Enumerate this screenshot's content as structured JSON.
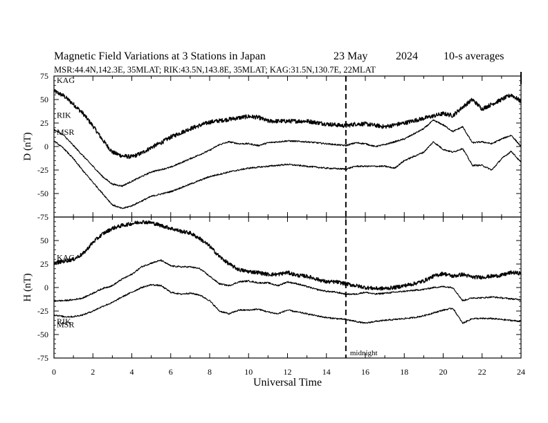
{
  "header": {
    "title_main": "Magnetic Field Variations at 3 Stations in Japan",
    "title_date": "23 May",
    "title_year": "2024",
    "title_avg": "10-s averages",
    "subtitle": "MSR:44.4N,142.3E, 35MLAT;  RIK:43.5N,143.8E, 35MLAT;  KAG:31.5N,130.7E, 22MLAT"
  },
  "chart_data": [
    {
      "type": "line",
      "panel": "top",
      "ylabel": "D (nT)",
      "ylim": [
        -75,
        75
      ],
      "yticks": [
        "75",
        "50",
        "25",
        "0",
        "-25",
        "-50",
        "-75"
      ],
      "xlim": [
        0,
        24
      ],
      "annotation": "",
      "series": [
        {
          "name": "KAG",
          "noise": 2.2,
          "points": [
            [
              0,
              59
            ],
            [
              0.5,
              54
            ],
            [
              1,
              45
            ],
            [
              1.5,
              35
            ],
            [
              2,
              22
            ],
            [
              2.5,
              7
            ],
            [
              3,
              -6
            ],
            [
              3.5,
              -10
            ],
            [
              4,
              -11
            ],
            [
              4.5,
              -7
            ],
            [
              5,
              -1
            ],
            [
              5.5,
              4
            ],
            [
              6,
              10
            ],
            [
              7,
              19
            ],
            [
              8,
              26
            ],
            [
              9,
              29
            ],
            [
              10,
              32
            ],
            [
              10.5,
              31
            ],
            [
              11,
              27
            ],
            [
              12,
              27
            ],
            [
              13,
              27
            ],
            [
              14,
              24
            ],
            [
              15,
              22
            ],
            [
              15.5,
              24
            ],
            [
              16,
              24
            ],
            [
              17,
              21
            ],
            [
              18,
              25
            ],
            [
              19,
              30
            ],
            [
              20,
              35
            ],
            [
              20.5,
              33
            ],
            [
              21,
              42
            ],
            [
              21.5,
              50
            ],
            [
              22,
              40
            ],
            [
              22.5,
              45
            ],
            [
              23,
              50
            ],
            [
              23.5,
              55
            ],
            [
              24,
              48
            ]
          ]
        },
        {
          "name": "RIK",
          "noise": 0.8,
          "points": [
            [
              0,
              18
            ],
            [
              0.5,
              12
            ],
            [
              1,
              1
            ],
            [
              1.5,
              -10
            ],
            [
              2,
              -21
            ],
            [
              2.5,
              -32
            ],
            [
              3,
              -40
            ],
            [
              3.5,
              -42
            ],
            [
              4,
              -37
            ],
            [
              4.5,
              -32
            ],
            [
              5,
              -27
            ],
            [
              6,
              -22
            ],
            [
              7,
              -13
            ],
            [
              8,
              -4
            ],
            [
              8.5,
              2
            ],
            [
              9,
              5
            ],
            [
              9.5,
              3
            ],
            [
              10,
              3
            ],
            [
              10.5,
              1
            ],
            [
              11,
              4
            ],
            [
              12,
              6
            ],
            [
              13,
              5
            ],
            [
              14,
              3
            ],
            [
              15,
              1
            ],
            [
              15.5,
              4
            ],
            [
              16,
              3
            ],
            [
              16.5,
              0
            ],
            [
              17,
              2
            ],
            [
              18,
              8
            ],
            [
              19,
              19
            ],
            [
              19.5,
              28
            ],
            [
              20,
              23
            ],
            [
              20.5,
              16
            ],
            [
              21,
              21
            ],
            [
              21.5,
              4
            ],
            [
              22,
              5
            ],
            [
              22.5,
              3
            ],
            [
              23,
              8
            ],
            [
              23.5,
              12
            ],
            [
              24,
              0
            ]
          ]
        },
        {
          "name": "MSR",
          "noise": 0.8,
          "points": [
            [
              0,
              6
            ],
            [
              0.5,
              -2
            ],
            [
              1,
              -13
            ],
            [
              1.5,
              -26
            ],
            [
              2,
              -38
            ],
            [
              2.5,
              -50
            ],
            [
              3,
              -62
            ],
            [
              3.5,
              -66
            ],
            [
              4,
              -63
            ],
            [
              4.5,
              -58
            ],
            [
              5,
              -53
            ],
            [
              6,
              -48
            ],
            [
              7,
              -40
            ],
            [
              8,
              -32
            ],
            [
              9,
              -27
            ],
            [
              10,
              -23
            ],
            [
              11,
              -21
            ],
            [
              12,
              -19
            ],
            [
              13,
              -21
            ],
            [
              14,
              -23
            ],
            [
              15,
              -24
            ],
            [
              15.5,
              -21
            ],
            [
              16,
              -21
            ],
            [
              17,
              -21
            ],
            [
              17.5,
              -23
            ],
            [
              18,
              -15
            ],
            [
              19,
              -6
            ],
            [
              19.5,
              5
            ],
            [
              20,
              -3
            ],
            [
              20.5,
              -6
            ],
            [
              21,
              -2
            ],
            [
              21.5,
              -20
            ],
            [
              22,
              -20
            ],
            [
              22.5,
              -25
            ],
            [
              23,
              -13
            ],
            [
              23.5,
              -5
            ],
            [
              24,
              -17
            ]
          ]
        }
      ]
    },
    {
      "type": "line",
      "panel": "bottom",
      "ylabel": "H (nT)",
      "ylim": [
        -75,
        75
      ],
      "yticks": [
        "",
        "50",
        "25",
        "0",
        "-25",
        "-50",
        "-75"
      ],
      "xlim": [
        0,
        24
      ],
      "xlabel": "Universal Time",
      "xticks": [
        "0",
        "2",
        "4",
        "6",
        "8",
        "10",
        "12",
        "14",
        "16",
        "18",
        "20",
        "22",
        "24"
      ],
      "annotation": "midnight",
      "series": [
        {
          "name": "KAG",
          "noise": 2.0,
          "points": [
            [
              0,
              26
            ],
            [
              0.5,
              28
            ],
            [
              1,
              30
            ],
            [
              1.5,
              36
            ],
            [
              2,
              48
            ],
            [
              2.5,
              57
            ],
            [
              3,
              63
            ],
            [
              3.5,
              66
            ],
            [
              4,
              68
            ],
            [
              4.5,
              70
            ],
            [
              5,
              69
            ],
            [
              5.5,
              66
            ],
            [
              6,
              63
            ],
            [
              6.5,
              60
            ],
            [
              7,
              58
            ],
            [
              7.5,
              52
            ],
            [
              8,
              44
            ],
            [
              8.5,
              33
            ],
            [
              9,
              25
            ],
            [
              9.5,
              19
            ],
            [
              10,
              17
            ],
            [
              10.5,
              16
            ],
            [
              11,
              14
            ],
            [
              11.5,
              14
            ],
            [
              12,
              16
            ],
            [
              12.5,
              13
            ],
            [
              13,
              12
            ],
            [
              13.5,
              9
            ],
            [
              14,
              6
            ],
            [
              14.5,
              6
            ],
            [
              15,
              4
            ],
            [
              15.5,
              2
            ],
            [
              16,
              0
            ],
            [
              16.5,
              -1
            ],
            [
              17,
              -1
            ],
            [
              17.5,
              0
            ],
            [
              18,
              2
            ],
            [
              18.5,
              4
            ],
            [
              19,
              7
            ],
            [
              19.5,
              12
            ],
            [
              20,
              15
            ],
            [
              20.5,
              12
            ],
            [
              21,
              14
            ],
            [
              21.5,
              11
            ],
            [
              22,
              11
            ],
            [
              22.5,
              12
            ],
            [
              23,
              13
            ],
            [
              23.5,
              16
            ],
            [
              24,
              15
            ]
          ]
        },
        {
          "name": "RIK",
          "noise": 0.8,
          "points": [
            [
              0,
              -14
            ],
            [
              0.5,
              -14
            ],
            [
              1,
              -13
            ],
            [
              1.5,
              -11
            ],
            [
              2,
              -6
            ],
            [
              2.5,
              -1
            ],
            [
              3,
              2
            ],
            [
              3.5,
              9
            ],
            [
              4,
              14
            ],
            [
              4.5,
              22
            ],
            [
              5,
              26
            ],
            [
              5.5,
              29
            ],
            [
              6,
              23
            ],
            [
              6.5,
              22
            ],
            [
              7,
              22
            ],
            [
              7.5,
              20
            ],
            [
              8,
              12
            ],
            [
              8.5,
              4
            ],
            [
              9,
              2
            ],
            [
              9.5,
              6
            ],
            [
              10,
              7
            ],
            [
              10.5,
              5
            ],
            [
              11,
              5
            ],
            [
              11.5,
              2
            ],
            [
              12,
              6
            ],
            [
              12.5,
              4
            ],
            [
              13,
              1
            ],
            [
              13.5,
              -2
            ],
            [
              14,
              -4
            ],
            [
              14.5,
              -5
            ],
            [
              15,
              -7
            ],
            [
              15.5,
              -7
            ],
            [
              16,
              -5
            ],
            [
              16.5,
              -7
            ],
            [
              17,
              -6
            ],
            [
              17.5,
              -5
            ],
            [
              18,
              -4
            ],
            [
              18.5,
              -3
            ],
            [
              19,
              -2
            ],
            [
              19.5,
              0
            ],
            [
              20,
              1
            ],
            [
              20.5,
              0
            ],
            [
              21,
              -14
            ],
            [
              21.5,
              -11
            ],
            [
              22,
              -11
            ],
            [
              22.5,
              -10
            ],
            [
              23,
              -11
            ],
            [
              23.5,
              -12
            ],
            [
              24,
              -13
            ]
          ]
        },
        {
          "name": "MSR",
          "noise": 0.8,
          "points": [
            [
              0,
              -29
            ],
            [
              0.5,
              -31
            ],
            [
              1,
              -31
            ],
            [
              1.5,
              -29
            ],
            [
              2,
              -25
            ],
            [
              2.5,
              -20
            ],
            [
              3,
              -16
            ],
            [
              3.5,
              -10
            ],
            [
              4,
              -5
            ],
            [
              4.5,
              0
            ],
            [
              5,
              3
            ],
            [
              5.5,
              2
            ],
            [
              6,
              -5
            ],
            [
              6.5,
              -7
            ],
            [
              7,
              -6
            ],
            [
              7.5,
              -8
            ],
            [
              8,
              -14
            ],
            [
              8.5,
              -25
            ],
            [
              9,
              -28
            ],
            [
              9.5,
              -24
            ],
            [
              10,
              -24
            ],
            [
              10.5,
              -23
            ],
            [
              11,
              -26
            ],
            [
              11.5,
              -28
            ],
            [
              12,
              -24
            ],
            [
              12.5,
              -26
            ],
            [
              13,
              -28
            ],
            [
              13.5,
              -30
            ],
            [
              14,
              -32
            ],
            [
              14.5,
              -33
            ],
            [
              15,
              -34
            ],
            [
              15.5,
              -36
            ],
            [
              16,
              -38
            ],
            [
              16.5,
              -36
            ],
            [
              17,
              -35
            ],
            [
              17.5,
              -34
            ],
            [
              18,
              -33
            ],
            [
              18.5,
              -32
            ],
            [
              19,
              -30
            ],
            [
              19.5,
              -27
            ],
            [
              20,
              -24
            ],
            [
              20.5,
              -22
            ],
            [
              21,
              -38
            ],
            [
              21.5,
              -33
            ],
            [
              22,
              -33
            ],
            [
              22.5,
              -33
            ],
            [
              23,
              -34
            ],
            [
              23.5,
              -35
            ],
            [
              24,
              -36
            ]
          ]
        }
      ]
    }
  ],
  "midnight_ut": 15
}
